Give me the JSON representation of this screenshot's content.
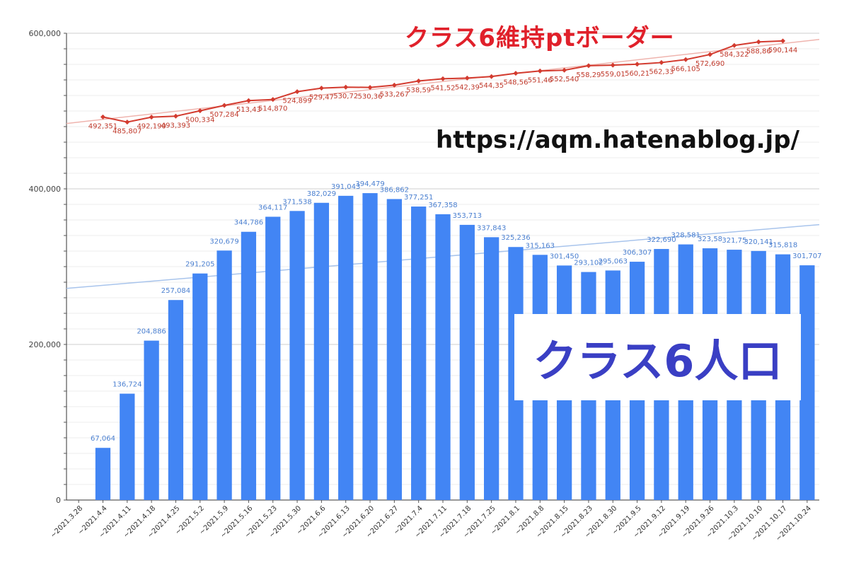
{
  "chart_data": {
    "type": "bar",
    "ylim": [
      0,
      600000
    ],
    "y_ticks": [
      "0",
      "200,000",
      "400,000",
      "600,000"
    ],
    "y_tick_values": [
      0,
      200000,
      400000,
      600000
    ],
    "grid": true,
    "categories": [
      "~2021.3.28",
      "~2021.4.4",
      "~2021.4.11",
      "~2021.4.18",
      "~2021.4.25",
      "~2021.5.2",
      "~2021.5.9",
      "~2021.5.16",
      "~2021.5.23",
      "~2021.5.30",
      "~2021.6.6",
      "~2021.6.13",
      "~2021.6.20",
      "~2021.6.27",
      "~2021.7.4",
      "~2021.7.11",
      "~2021.7.18",
      "~2021.7.25",
      "~2021.8.1",
      "~2021.8.8",
      "~2021.8.15",
      "~2021.8.23",
      "~2021.8.30",
      "~2021.9.5",
      "~2021.9.12",
      "~2021.9.19",
      "~2021.9.26",
      "~2021.10.3",
      "~2021.10.10",
      "~2021.10.17",
      "~2021.10.24"
    ],
    "series": [
      {
        "name": "クラス6人口",
        "kind": "bar",
        "color": "#4285f4",
        "values": [
          null,
          67064,
          136724,
          204886,
          257084,
          291205,
          320679,
          344786,
          364117,
          371538,
          382029,
          391043,
          394479,
          386862,
          377251,
          367358,
          353713,
          337843,
          325236,
          315163,
          301450,
          293102,
          295063,
          306307,
          322690,
          328581,
          323580,
          321750,
          320141,
          315818,
          301707
        ],
        "labels": [
          "",
          "67,064",
          "136,724",
          "204,886",
          "257,084",
          "291,205",
          "320,679",
          "344,786",
          "364,117",
          "371,538",
          "382,029",
          "391,043",
          "394,479",
          "386,862",
          "377,251",
          "367,358",
          "353,713",
          "337,843",
          "325,236",
          "315,163",
          "301,450",
          "293,102",
          "295,063",
          "306,307",
          "322,690",
          "328,581",
          "323,58",
          "321,75",
          "320,141",
          "315,818",
          "301,707"
        ],
        "trendline": {
          "color": "#a8c4ec",
          "start": 272000,
          "end": 354000
        }
      },
      {
        "name": "クラス6維持ptボーダー",
        "kind": "line",
        "color": "#d33b2f",
        "values": [
          null,
          492351,
          485807,
          492190,
          493393,
          500334,
          507284,
          513430,
          514870,
          524899,
          529470,
          530720,
          530360,
          533267,
          538590,
          541520,
          542390,
          544350,
          548560,
          551460,
          552540,
          558290,
          559010,
          560210,
          562330,
          566105,
          572690,
          584322,
          588860,
          590144,
          null
        ],
        "labels": [
          "",
          "492,351",
          "485,807",
          "492,190",
          "493,393",
          "500,334",
          "507,284",
          "513,43",
          "514,870",
          "524,899",
          "529,47",
          "530,72",
          "530,36",
          "533,267",
          "538,59",
          "541,52",
          "542,39",
          "544,35",
          "548,56",
          "551,46",
          "552,540",
          "558,29",
          "559,01",
          "560,21",
          "562,33",
          "566,105",
          "572,690",
          "584,322",
          "588,86",
          "590,144",
          ""
        ],
        "trendline": {
          "color": "#efb4ae",
          "start": 484000,
          "end": 592000
        }
      }
    ]
  },
  "overlay": {
    "line_title": "クラス6維持ptボーダー",
    "url": "https://aqm.hatenablog.jp/",
    "bar_title": "クラス6人口"
  },
  "colors": {
    "bar": "#4285f4",
    "line": "#d33b2f",
    "title_red": "#e0202a",
    "pop_text": "#3a3fc4"
  }
}
